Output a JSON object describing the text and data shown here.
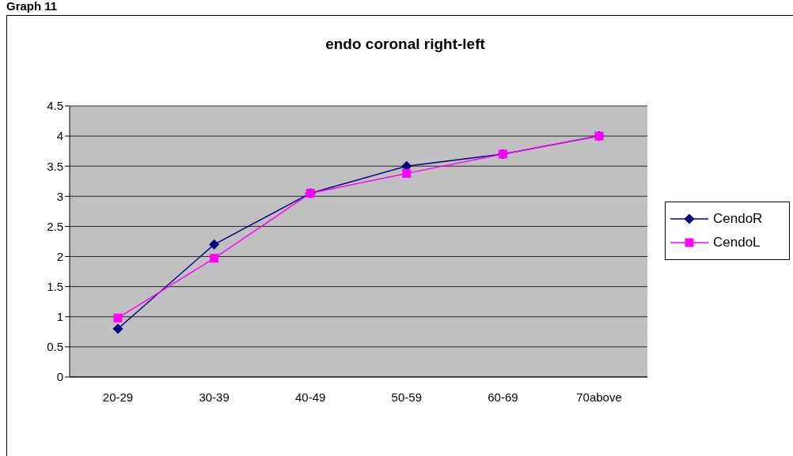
{
  "chart_data": {
    "type": "line",
    "title": "endo coronal right-left",
    "annotations": [
      "Graph 11"
    ],
    "categories": [
      "20-29",
      "30-39",
      "40-49",
      "50-59",
      "60-69",
      "70above"
    ],
    "series": [
      {
        "name": "CendoR",
        "color": "#000080",
        "marker": "diamond",
        "values": [
          0.8,
          2.2,
          3.05,
          3.5,
          3.7,
          4.0
        ]
      },
      {
        "name": "CendoL",
        "color": "#ff00ff",
        "marker": "square",
        "values": [
          0.98,
          1.97,
          3.05,
          3.38,
          3.7,
          4.0
        ]
      }
    ],
    "ylim": [
      0,
      4.5
    ],
    "yticks": [
      0,
      0.5,
      1,
      1.5,
      2,
      2.5,
      3,
      3.5,
      4,
      4.5
    ],
    "grid": "y",
    "legend": "right"
  }
}
